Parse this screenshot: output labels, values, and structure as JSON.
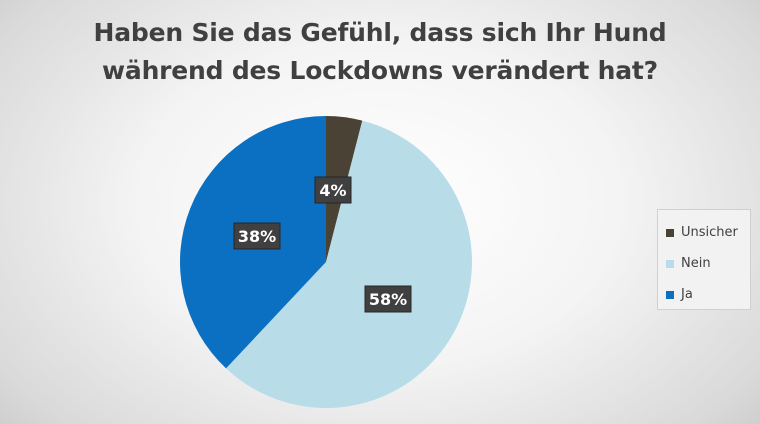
{
  "chart_data": {
    "type": "pie",
    "title_lines": [
      "Haben Sie das Gefühl, dass sich Ihr Hund",
      "während des Lockdowns verändert hat?"
    ],
    "categories": [
      "Unsicher",
      "Nein",
      "Ja"
    ],
    "values": [
      4,
      58,
      38
    ],
    "labels": [
      "4%",
      "58%",
      "38%"
    ],
    "colors": [
      "#4a4234",
      "#b8dde9",
      "#0c70c2"
    ],
    "legend_position": "right",
    "start_angle": "12 o'clock",
    "direction": "clockwise"
  }
}
